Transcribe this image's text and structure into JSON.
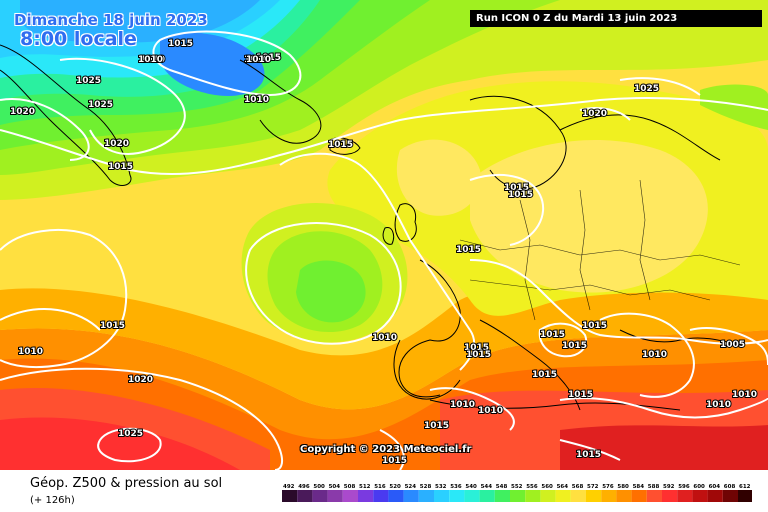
{
  "header": {
    "date_line": "Dimanche 18 juin 2023",
    "time_line": "8:00 locale",
    "run_line": "Run ICON 0 Z du Mardi 13 juin 2023"
  },
  "copyright": "Copyright © 2023 Meteociel.fr",
  "footer": {
    "product": "Géop. Z500 & pression au sol",
    "lead": "(+ 126h)"
  },
  "legend": {
    "values": [
      "492",
      "496",
      "500",
      "504",
      "508",
      "512",
      "516",
      "520",
      "524",
      "528",
      "532",
      "536",
      "540",
      "544",
      "548",
      "552",
      "556",
      "560",
      "564",
      "568",
      "572",
      "576",
      "580",
      "584",
      "588",
      "592",
      "596",
      "600",
      "604",
      "608",
      "612"
    ],
    "colors": [
      "#2a0a2a",
      "#4a1a5a",
      "#6a2a8a",
      "#8a3aaa",
      "#aa4acc",
      "#7a3ae0",
      "#4a3af0",
      "#2a5af8",
      "#2a8aff",
      "#2ab0ff",
      "#2ad0ff",
      "#2ae8f8",
      "#2af0d8",
      "#2af0a0",
      "#40f060",
      "#70f030",
      "#a0f020",
      "#d0f020",
      "#f0f020",
      "#ffe040",
      "#ffd000",
      "#ffb000",
      "#ff9000",
      "#ff7000",
      "#ff5030",
      "#ff3030",
      "#e02020",
      "#c01010",
      "#a00808",
      "#700404",
      "#300000"
    ]
  },
  "isobars": [
    {
      "label": "1015"
    },
    {
      "label": "1010"
    },
    {
      "label": "1015"
    },
    {
      "label": "1010"
    },
    {
      "label": "1010"
    },
    {
      "label": "1025"
    },
    {
      "label": "1025"
    },
    {
      "label": "1020"
    },
    {
      "label": "1020"
    },
    {
      "label": "1015"
    },
    {
      "label": "1015"
    },
    {
      "label": "1015"
    },
    {
      "label": "1015"
    },
    {
      "label": "1010"
    },
    {
      "label": "1020"
    },
    {
      "label": "1025"
    },
    {
      "label": "1010"
    },
    {
      "label": "1015"
    },
    {
      "label": "1015"
    },
    {
      "label": "1025"
    },
    {
      "label": "1020"
    },
    {
      "label": "1015"
    },
    {
      "label": "1015"
    },
    {
      "label": "1015"
    },
    {
      "label": "1015"
    },
    {
      "label": "1015"
    },
    {
      "label": "1010"
    },
    {
      "label": "1005"
    },
    {
      "label": "1015"
    },
    {
      "label": "1010"
    },
    {
      "label": "1010"
    },
    {
      "label": "1010"
    },
    {
      "label": "1010"
    },
    {
      "label": "1015"
    },
    {
      "label": "1015"
    },
    {
      "label": "1015"
    },
    {
      "label": "1015"
    },
    {
      "label": "1010"
    },
    {
      "label": "1010"
    }
  ]
}
